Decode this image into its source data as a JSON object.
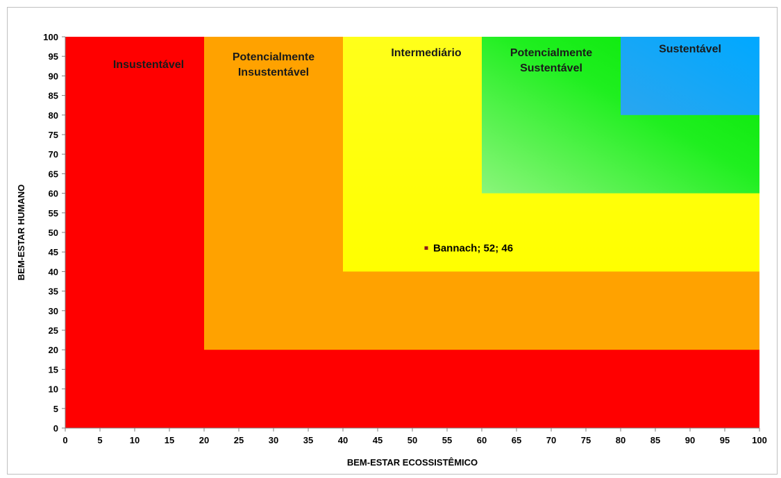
{
  "chart_data": {
    "type": "scatter",
    "title": "",
    "xlabel": "BEM-ESTAR ECOSSISTÊMICO",
    "ylabel": "BEM-ESTAR HUMANO",
    "xlim": [
      0,
      100
    ],
    "ylim": [
      0,
      100
    ],
    "x_ticks": [
      0,
      5,
      10,
      15,
      20,
      25,
      30,
      35,
      40,
      45,
      50,
      55,
      60,
      65,
      70,
      75,
      80,
      85,
      90,
      95,
      100
    ],
    "y_ticks": [
      0,
      5,
      10,
      15,
      20,
      25,
      30,
      35,
      40,
      45,
      50,
      55,
      60,
      65,
      70,
      75,
      80,
      85,
      90,
      95,
      100
    ],
    "grid": false,
    "zones": [
      {
        "label_lines": [
          "Insustentável"
        ],
        "min": 0,
        "color": "#ff0000",
        "label_x": 12,
        "label_y": 92
      },
      {
        "label_lines": [
          "Potencialmente",
          "Insustentável"
        ],
        "min": 20,
        "color": "#ffa200",
        "label_x": 30,
        "label_y": 94
      },
      {
        "label_lines": [
          "Intermediário"
        ],
        "min": 40,
        "color": "#ffff00",
        "label_x": 52,
        "label_y": 95
      },
      {
        "label_lines": [
          "Potencialmente",
          "Sustentável"
        ],
        "min": 60,
        "color": "#22ee22",
        "label_x": 70,
        "label_y": 95
      },
      {
        "label_lines": [
          "Sustentável"
        ],
        "min": 80,
        "color": "#00a8ff",
        "label_x": 90,
        "label_y": 96
      }
    ],
    "points": [
      {
        "label": "Bannach; 52; 46",
        "x": 52,
        "y": 46,
        "color": "#8b1a1a"
      }
    ]
  }
}
